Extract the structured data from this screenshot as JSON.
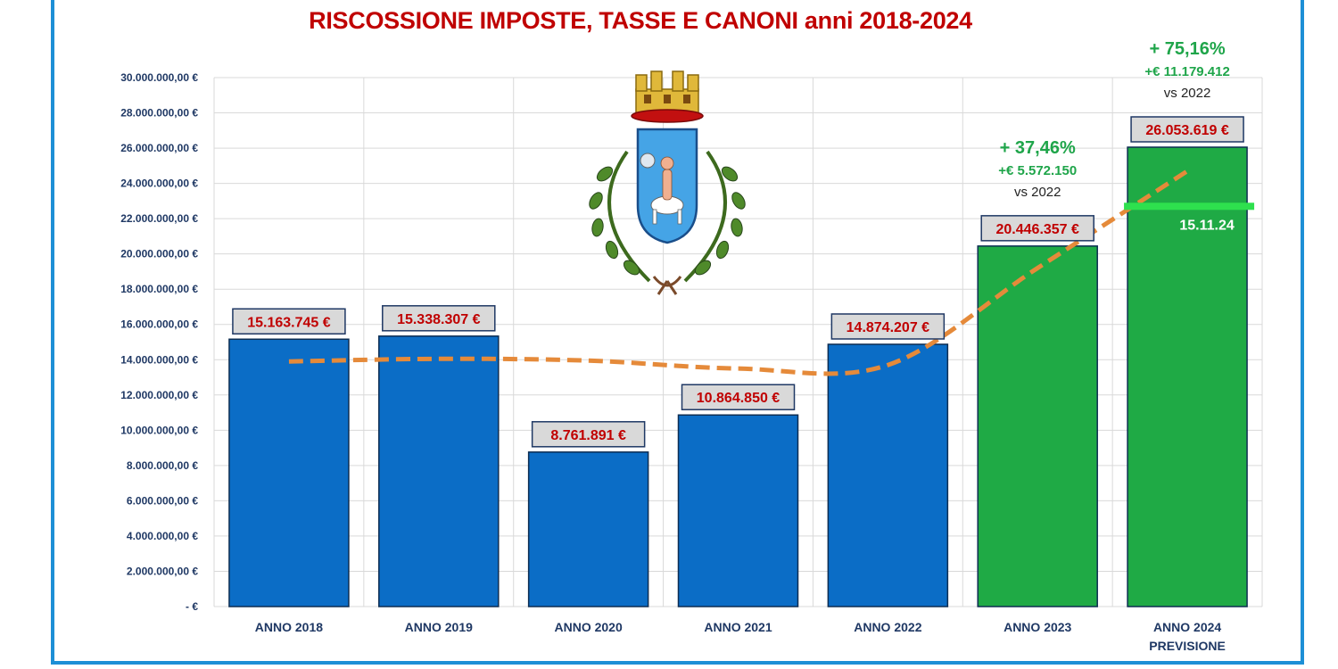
{
  "chart_data": {
    "type": "bar",
    "title": "RISCOSSIONE IMPOSTE, TASSE E CANONI anni 2018-2024",
    "categories": [
      "ANNO 2018",
      "ANNO 2019",
      "ANNO 2020",
      "ANNO 2021",
      "ANNO 2022",
      "ANNO 2023",
      "ANNO 2024\nPREVISIONE"
    ],
    "values": [
      15163745,
      15338307,
      8761891,
      10864850,
      14874207,
      20446357,
      26053619
    ],
    "value_labels": [
      "15.163.745 €",
      "15.338.307 €",
      "8.761.891 €",
      "10.864.850 €",
      "14.874.207 €",
      "20.446.357 €",
      "26.053.619 €"
    ],
    "bar_colors": [
      "#0b6dc6",
      "#0b6dc6",
      "#0b6dc6",
      "#0b6dc6",
      "#0b6dc6",
      "#1faa45",
      "#1faa45"
    ],
    "ylim": [
      0,
      30000000
    ],
    "yticks": [
      0,
      2000000,
      4000000,
      6000000,
      8000000,
      10000000,
      12000000,
      14000000,
      16000000,
      18000000,
      20000000,
      22000000,
      24000000,
      26000000,
      28000000,
      30000000
    ],
    "ytick_labels": [
      "-   €",
      "2.000.000,00 €",
      "4.000.000,00 €",
      "6.000.000,00 €",
      "8.000.000,00 €",
      "10.000.000,00 €",
      "12.000.000,00 €",
      "14.000.000,00 €",
      "16.000.000,00 €",
      "18.000.000,00 €",
      "20.000.000,00 €",
      "22.000.000,00 €",
      "24.000.000,00 €",
      "26.000.000,00 €",
      "28.000.000,00 €",
      "30.000.000,00 €"
    ],
    "grid": true,
    "trend_line": {
      "style": "dashed",
      "color": "#e58a3a",
      "values": [
        13900000,
        14050000,
        13950000,
        13500000,
        13700000,
        19200000,
        24700000
      ]
    },
    "annotations": [
      {
        "category": "ANNO 2023",
        "pct": "+ 37,46%",
        "amount": "+€ 5.572.150",
        "vs": "vs 2022"
      },
      {
        "category": "ANNO 2024\nPREVISIONE",
        "pct": "+ 75,16%",
        "amount": "+€ 11.179.412",
        "vs": "vs 2022"
      }
    ],
    "marker": {
      "category": "ANNO 2024\nPREVISIONE",
      "value": 22700000,
      "label": "15.11.24",
      "color": "#2ee04e"
    }
  },
  "emblem": {
    "name": "city-coat-of-arms"
  }
}
